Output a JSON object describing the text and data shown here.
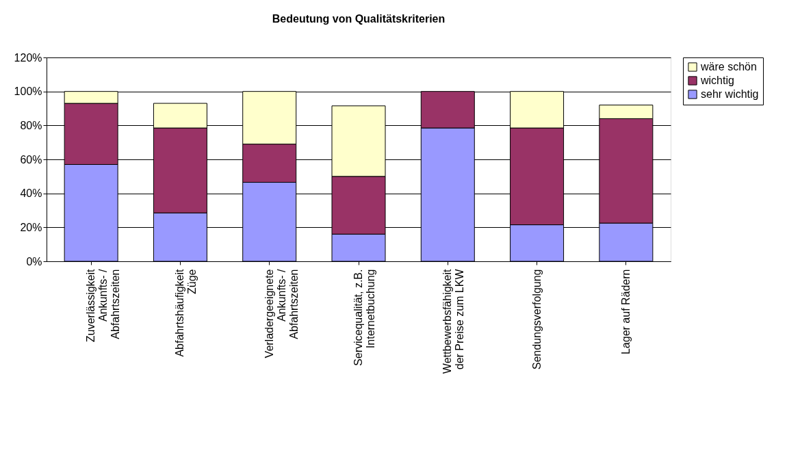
{
  "chart_data": {
    "type": "bar",
    "title": "Bedeutung von Qualitätskriterien",
    "stacked": true,
    "categories": [
      "Zuverlässigkeit Ankunfts- / Abfahrtszeiten",
      "Abfahrtshäufigkeit Züge",
      "Verladergeeignete Ankunfts- / Abfahrtszeiten",
      "Servicequalität, z.B. Internetbuchung",
      "Wettbewerbsfähigkeit der Preise zum LKW",
      "Sendungsverfolgung",
      "Lager auf Rädern"
    ],
    "series": [
      {
        "name": "sehr wichtig",
        "color": "#9999ff",
        "values": [
          57,
          28.5,
          46.5,
          16,
          78.5,
          21.5,
          22.5
        ]
      },
      {
        "name": "wichtig",
        "color": "#993366",
        "values": [
          36,
          50,
          22.5,
          34,
          21.5,
          57,
          61.5
        ]
      },
      {
        "name": "wäre schön",
        "color": "#ffffcc",
        "values": [
          7,
          14.5,
          31,
          41.5,
          null,
          21.5,
          8
        ]
      }
    ],
    "ylim": [
      0,
      120
    ],
    "yticks": [
      {
        "value": 0,
        "label": "0%"
      },
      {
        "value": 20,
        "label": "20%"
      },
      {
        "value": 40,
        "label": "40%"
      },
      {
        "value": 60,
        "label": "60%"
      },
      {
        "value": 80,
        "label": "80%"
      },
      {
        "value": 100,
        "label": "100%"
      },
      {
        "value": 120,
        "label": "120%"
      }
    ],
    "grid": "y",
    "legend": "right"
  }
}
